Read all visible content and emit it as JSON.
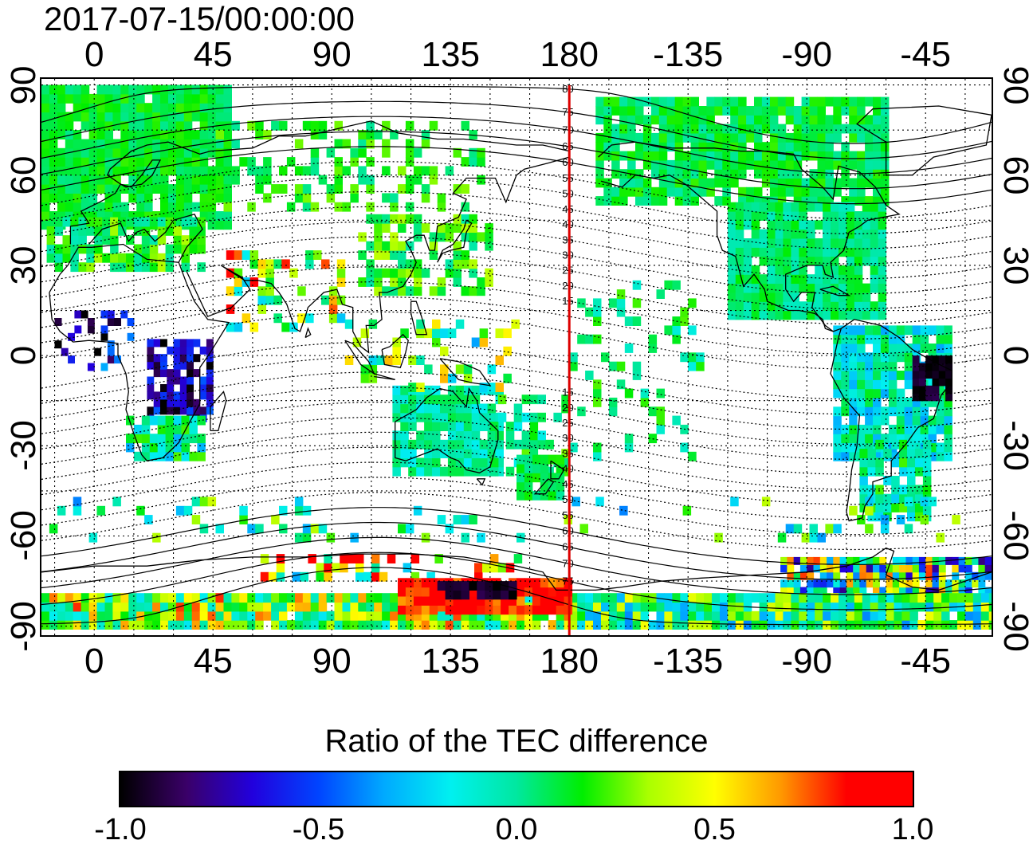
{
  "timestamp": "2017-07-15/00:00:00",
  "map": {
    "lon_ticks_top": [
      "0",
      "45",
      "90",
      "135",
      "180",
      "-135",
      "-90",
      "-45"
    ],
    "lon_ticks_bottom": [
      "0",
      "45",
      "90",
      "135",
      "180",
      "-135",
      "-90",
      "-45"
    ],
    "lat_ticks_left": [
      "90",
      "60",
      "30",
      "0",
      "-30",
      "-60",
      "-90"
    ],
    "lat_ticks_right": [
      "90",
      "60",
      "30",
      "0",
      "-30",
      "-60",
      "-90"
    ],
    "lon_range": [
      -20,
      340
    ],
    "lat_range": [
      -93,
      92
    ],
    "meridian_marker_lon": 180,
    "meridian_marker_color": "#dd0000",
    "magnetic_lat_labels_north": [
      "80",
      "75",
      "70",
      "65",
      "60",
      "55",
      "50",
      "45",
      "40",
      "35",
      "30",
      "25",
      "20",
      "15"
    ],
    "magnetic_lat_labels_south": [
      "15",
      "20",
      "25",
      "30",
      "35",
      "40",
      "45",
      "50",
      "55",
      "60",
      "65",
      "70",
      "75"
    ]
  },
  "colorbar": {
    "title": "Ratio of the TEC difference",
    "labels": [
      "-1.0",
      "-0.5",
      "0.0",
      "0.5",
      "1.0"
    ],
    "range": [
      -1.0,
      1.0
    ],
    "colors": [
      "#000000",
      "#3a0068",
      "#2200dd",
      "#0044ff",
      "#00aaff",
      "#00f0f0",
      "#00e8a0",
      "#00ee00",
      "#aaff00",
      "#ffff00",
      "#ff9900",
      "#ff0000",
      "#ff0000"
    ]
  }
}
